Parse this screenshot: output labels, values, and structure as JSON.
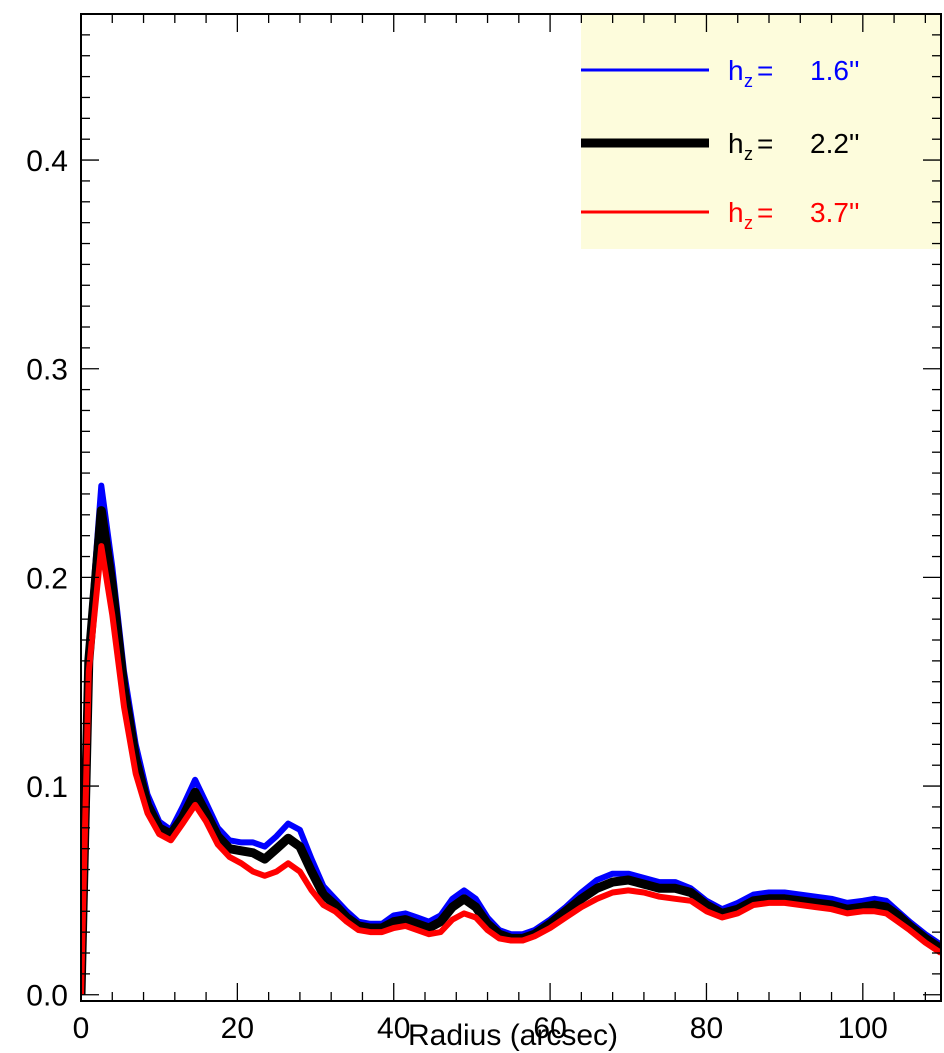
{
  "chart_data": {
    "type": "line",
    "xlabel": "Radius (arcsec)",
    "ylabel": "",
    "title": "",
    "xlim": [
      0,
      110
    ],
    "ylim": [
      -0.003,
      0.47
    ],
    "x_ticks": [
      0,
      20,
      40,
      60,
      80,
      100
    ],
    "x_tick_labels": [
      "0",
      "20",
      "40",
      "60",
      "80",
      "100"
    ],
    "y_ticks": [
      0.0,
      0.1,
      0.2,
      0.3,
      0.4
    ],
    "y_tick_labels": [
      "0.0",
      "0.1",
      "0.2",
      "0.3",
      "0.4"
    ],
    "grid": false,
    "legend": {
      "placement": "top-right",
      "background": "#fdfcdc",
      "entries": [
        {
          "sym": "h",
          "sub": "z",
          "eq": "=",
          "value": "1.6''",
          "color": "#0000ff"
        },
        {
          "sym": "h",
          "sub": "z",
          "eq": "=",
          "value": "2.2''",
          "color": "#000000"
        },
        {
          "sym": "h",
          "sub": "z",
          "eq": "=",
          "value": "3.7''",
          "color": "#ff0000"
        }
      ]
    },
    "x": [
      0,
      1,
      2.6,
      4,
      5.5,
      7,
      8.5,
      10,
      11.5,
      13,
      14.6,
      16,
      17.5,
      19,
      20.5,
      22,
      23.5,
      25,
      26.5,
      28,
      29.5,
      31,
      32.5,
      34,
      35.5,
      37,
      38.5,
      40,
      41.5,
      43,
      44.5,
      46,
      47.5,
      49,
      50.5,
      52,
      53.5,
      55,
      56.5,
      58,
      60,
      62,
      64,
      66,
      68,
      70,
      72,
      74,
      76,
      78,
      80,
      82,
      84,
      86,
      88,
      90,
      92,
      94,
      96,
      98,
      100,
      101.5,
      103,
      104.5,
      106,
      108,
      110
    ],
    "series": [
      {
        "name": "1.6''",
        "color": "#0000ff",
        "width": 6,
        "values": [
          0.0,
          0.165,
          0.244,
          0.205,
          0.155,
          0.12,
          0.096,
          0.083,
          0.079,
          0.09,
          0.103,
          0.092,
          0.08,
          0.074,
          0.073,
          0.073,
          0.071,
          0.076,
          0.082,
          0.079,
          0.065,
          0.052,
          0.046,
          0.04,
          0.035,
          0.034,
          0.034,
          0.038,
          0.039,
          0.037,
          0.035,
          0.038,
          0.046,
          0.05,
          0.046,
          0.037,
          0.031,
          0.029,
          0.029,
          0.031,
          0.036,
          0.042,
          0.049,
          0.055,
          0.058,
          0.058,
          0.056,
          0.054,
          0.054,
          0.051,
          0.045,
          0.041,
          0.044,
          0.048,
          0.049,
          0.049,
          0.048,
          0.047,
          0.046,
          0.044,
          0.045,
          0.046,
          0.045,
          0.04,
          0.035,
          0.029,
          0.024
        ]
      },
      {
        "name": "2.2''",
        "color": "#000000",
        "width": 9,
        "values": [
          0.0,
          0.16,
          0.232,
          0.196,
          0.147,
          0.113,
          0.091,
          0.08,
          0.077,
          0.085,
          0.097,
          0.087,
          0.076,
          0.07,
          0.069,
          0.068,
          0.065,
          0.07,
          0.075,
          0.071,
          0.059,
          0.048,
          0.043,
          0.037,
          0.033,
          0.032,
          0.032,
          0.035,
          0.036,
          0.034,
          0.032,
          0.035,
          0.042,
          0.046,
          0.042,
          0.034,
          0.029,
          0.027,
          0.027,
          0.029,
          0.034,
          0.04,
          0.046,
          0.051,
          0.054,
          0.055,
          0.053,
          0.051,
          0.051,
          0.049,
          0.043,
          0.039,
          0.041,
          0.045,
          0.046,
          0.046,
          0.045,
          0.044,
          0.043,
          0.041,
          0.042,
          0.043,
          0.042,
          0.038,
          0.033,
          0.027,
          0.022
        ]
      },
      {
        "name": "3.7''",
        "color": "#ff0000",
        "width": 6,
        "values": [
          0.0,
          0.155,
          0.215,
          0.182,
          0.138,
          0.106,
          0.087,
          0.077,
          0.074,
          0.082,
          0.091,
          0.083,
          0.072,
          0.066,
          0.063,
          0.059,
          0.057,
          0.059,
          0.063,
          0.059,
          0.05,
          0.043,
          0.04,
          0.035,
          0.031,
          0.03,
          0.03,
          0.032,
          0.033,
          0.031,
          0.029,
          0.03,
          0.036,
          0.039,
          0.037,
          0.031,
          0.027,
          0.026,
          0.026,
          0.028,
          0.032,
          0.037,
          0.042,
          0.046,
          0.049,
          0.05,
          0.049,
          0.047,
          0.046,
          0.045,
          0.04,
          0.037,
          0.039,
          0.043,
          0.044,
          0.044,
          0.043,
          0.042,
          0.041,
          0.039,
          0.04,
          0.04,
          0.039,
          0.035,
          0.031,
          0.025,
          0.02
        ]
      }
    ]
  }
}
